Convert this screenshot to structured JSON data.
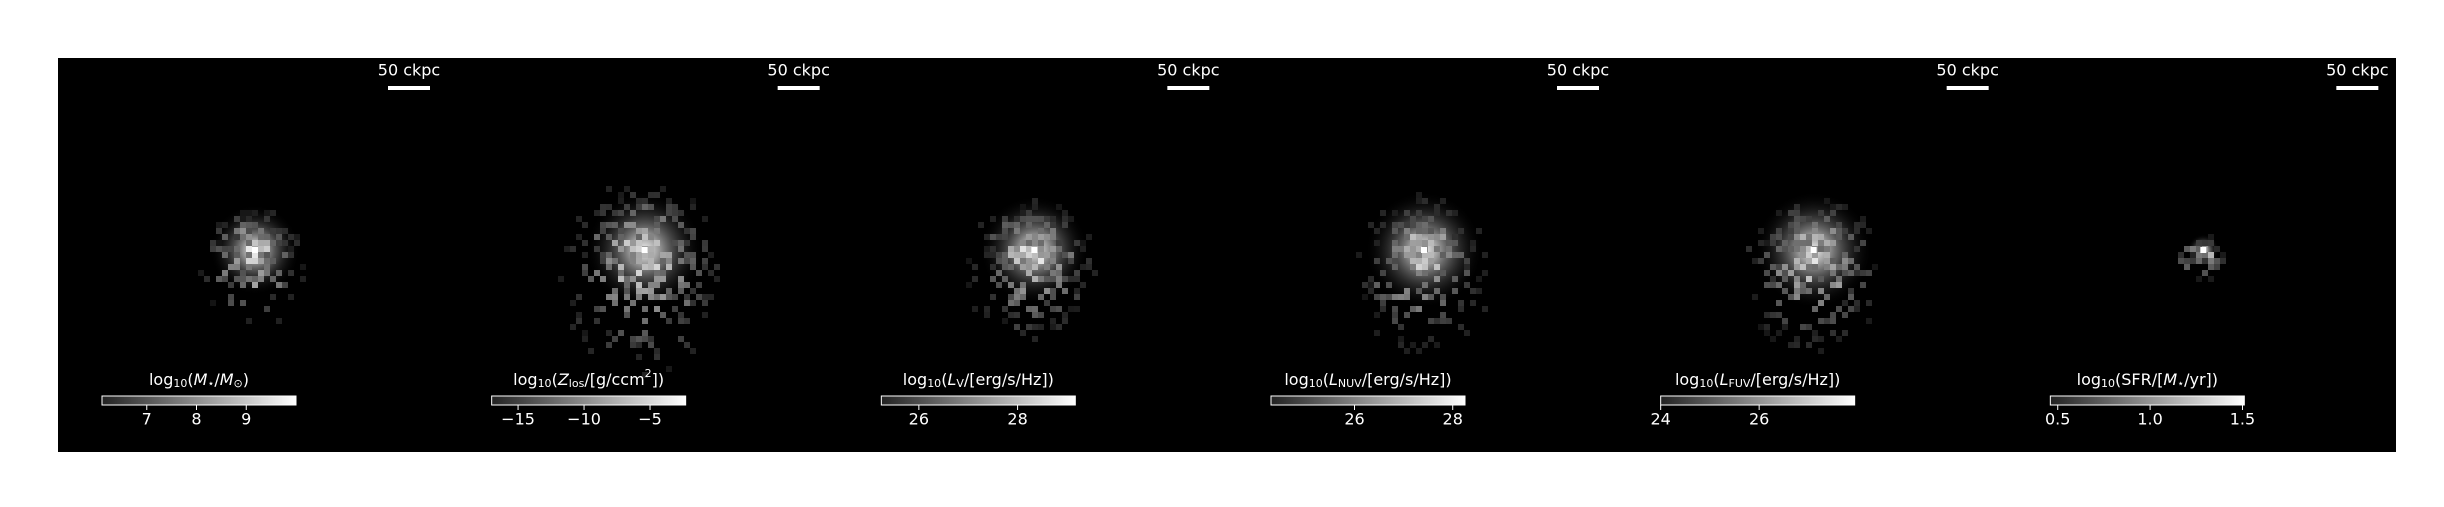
{
  "chart_data": [
    {
      "type": "image",
      "scalebar": "50 ckpc",
      "label": [
        "log",
        "10",
        "(",
        "M",
        "⋆",
        "/",
        "M",
        "⊙",
        ")"
      ],
      "label_format": [
        "",
        "sub",
        "",
        "italic",
        "sub",
        "",
        "italic",
        "sub",
        ""
      ],
      "clim": [
        6.1,
        10.0
      ],
      "cticks": [
        7,
        8,
        9
      ],
      "spread": 1.0
    },
    {
      "type": "image",
      "scalebar": "50 ckpc",
      "label": [
        "log",
        "10",
        "(",
        "Z",
        "los",
        "/[g/ccm",
        "2",
        "])"
      ],
      "label_format": [
        "",
        "sub",
        "",
        "italic",
        "sub",
        "",
        "sup",
        ""
      ],
      "clim": [
        -17.0,
        -2.3
      ],
      "cticks": [
        {
          "value": -15,
          "label": "−15"
        },
        {
          "value": -10,
          "label": "−10"
        },
        {
          "value": -5,
          "label": "−5"
        }
      ],
      "spread": 1.6
    },
    {
      "type": "image",
      "scalebar": "50 ckpc",
      "label": [
        "log",
        "10",
        "(",
        "L",
        "V",
        "/[erg/s/Hz])"
      ],
      "label_format": [
        "",
        "sub",
        "",
        "italic",
        "sub",
        ""
      ],
      "clim": [
        25.24,
        29.17
      ],
      "cticks": [
        26,
        28
      ],
      "spread": 1.2
    },
    {
      "type": "image",
      "scalebar": "50 ckpc",
      "label": [
        "log",
        "10",
        "(",
        "L",
        "NUV",
        "/[erg/s/Hz])"
      ],
      "label_format": [
        "",
        "sub",
        "",
        "italic",
        "sub",
        ""
      ],
      "clim": [
        24.3,
        28.25
      ],
      "cticks": [
        26,
        28
      ],
      "spread": 1.3
    },
    {
      "type": "image",
      "scalebar": "50 ckpc",
      "label": [
        "log",
        "10",
        "(",
        "L",
        "FUV",
        "/[erg/s/Hz])"
      ],
      "label_format": [
        "",
        "sub",
        "",
        "italic",
        "sub",
        ""
      ],
      "clim": [
        24.0,
        27.94
      ],
      "cticks": [
        24,
        26
      ],
      "spread": 1.3
    },
    {
      "type": "image",
      "scalebar": "50 ckpc",
      "label": [
        "log",
        "10",
        "(SFR/[",
        "M",
        "⋆",
        "/yr])"
      ],
      "label_format": [
        "",
        "sub",
        "",
        "italic",
        "sub",
        ""
      ],
      "clim": [
        0.46,
        1.51
      ],
      "cticks": [
        0.5,
        {
          "value": 1.0,
          "label": "1.0"
        },
        1.5
      ],
      "spread": 0.35
    }
  ]
}
